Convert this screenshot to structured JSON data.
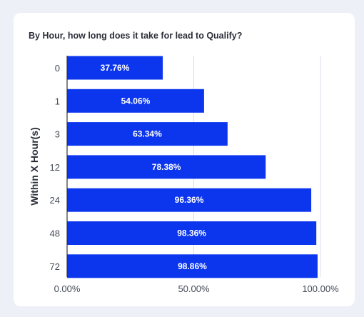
{
  "colors": {
    "bar": "#0b36ee",
    "grid": "#dcdfe8",
    "axis": "#333333"
  },
  "chart_data": {
    "type": "bar",
    "orientation": "horizontal",
    "title": "By Hour, how long does it take for lead to Qualify?",
    "ylabel": "Within X Hour(s)",
    "xlabel": "",
    "categories": [
      "0",
      "1",
      "3",
      "12",
      "24",
      "48",
      "72"
    ],
    "values": [
      37.76,
      54.06,
      63.34,
      78.38,
      96.36,
      98.36,
      98.86
    ],
    "data_labels": [
      "37.76%",
      "54.06%",
      "63.34%",
      "78.38%",
      "96.36%",
      "98.36%",
      "98.86%"
    ],
    "xlim": [
      0,
      100
    ],
    "x_ticks": [
      0,
      50,
      100
    ],
    "x_tick_labels": [
      "0.00%",
      "50.00%",
      "100.00%"
    ],
    "grid": true,
    "legend": "none"
  }
}
